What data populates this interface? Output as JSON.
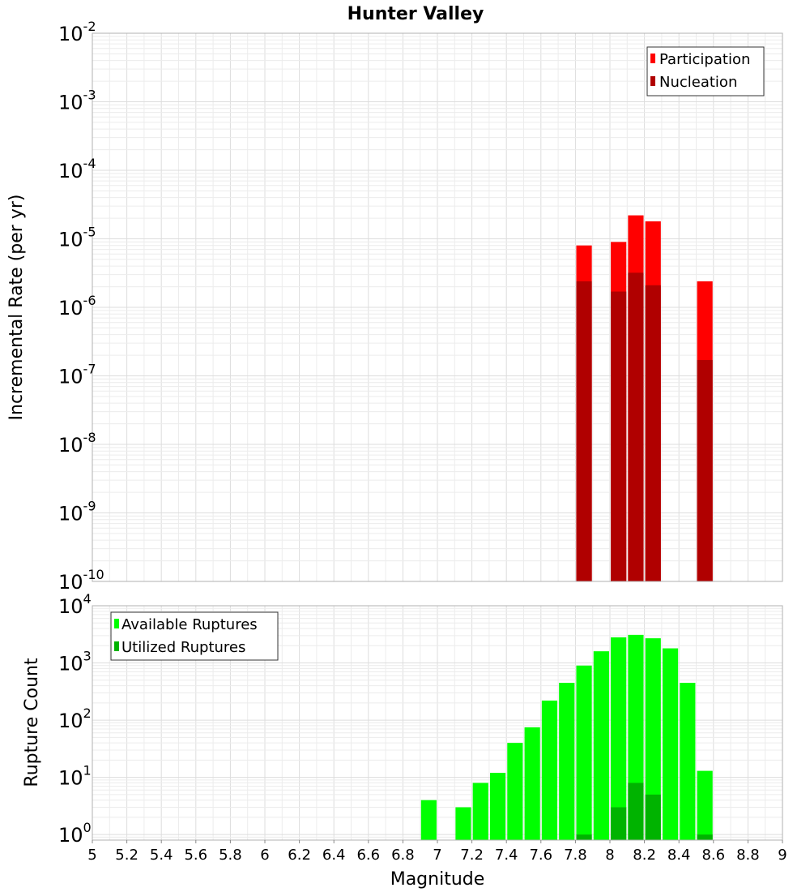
{
  "chart_data": [
    {
      "type": "bar",
      "scale": "log",
      "title": "Hunter Valley",
      "xlabel": "",
      "ylabel": "Incremental Rate (per yr)",
      "xlim": [
        5,
        9
      ],
      "ylim": [
        1e-10,
        0.01
      ],
      "y_tick_exponents": [
        "-10",
        "-9",
        "-8",
        "-7",
        "-6",
        "-5",
        "-4",
        "-3",
        "-2"
      ],
      "bar_width": 0.09,
      "legend": {
        "position": "top-right",
        "entries": [
          "Participation",
          "Nucleation"
        ]
      },
      "series": [
        {
          "name": "Participation",
          "color": "#ff0000",
          "x": [
            7.85,
            8.05,
            8.15,
            8.25,
            8.55
          ],
          "values": [
            8e-06,
            9e-06,
            2.2e-05,
            1.8e-05,
            2.4e-06
          ]
        },
        {
          "name": "Nucleation",
          "color": "#b00000",
          "x": [
            7.85,
            8.05,
            8.15,
            8.25,
            8.55
          ],
          "values": [
            2.4e-06,
            1.7e-06,
            3.2e-06,
            2.1e-06,
            1.7e-07
          ]
        }
      ]
    },
    {
      "type": "bar",
      "scale": "log",
      "title": "",
      "xlabel": "Magnitude",
      "ylabel": "Rupture Count",
      "xlim": [
        5,
        9
      ],
      "ylim": [
        0.8,
        10000
      ],
      "y_tick_exponents": [
        "0",
        "1",
        "2",
        "3",
        "4"
      ],
      "x_ticks": [
        "5",
        "5.2",
        "5.4",
        "5.6",
        "5.8",
        "6",
        "6.2",
        "6.4",
        "6.6",
        "6.8",
        "7",
        "7.2",
        "7.4",
        "7.6",
        "7.8",
        "8",
        "8.2",
        "8.4",
        "8.6",
        "8.8",
        "9"
      ],
      "bar_width": 0.09,
      "legend": {
        "position": "top-left",
        "entries": [
          "Available Ruptures",
          "Utilized Ruptures"
        ]
      },
      "series": [
        {
          "name": "Available Ruptures",
          "color": "#00ff00",
          "x": [
            6.95,
            7.15,
            7.25,
            7.35,
            7.45,
            7.55,
            7.65,
            7.75,
            7.85,
            7.95,
            8.05,
            8.15,
            8.25,
            8.35,
            8.45,
            8.55
          ],
          "values": [
            4,
            3,
            8,
            12,
            40,
            75,
            220,
            450,
            900,
            1600,
            2800,
            3100,
            2700,
            1800,
            450,
            13
          ]
        },
        {
          "name": "Utilized Ruptures",
          "color": "#00b300",
          "x": [
            7.85,
            8.05,
            8.15,
            8.25,
            8.55
          ],
          "values": [
            1,
            3,
            8,
            5,
            1
          ]
        }
      ]
    }
  ]
}
